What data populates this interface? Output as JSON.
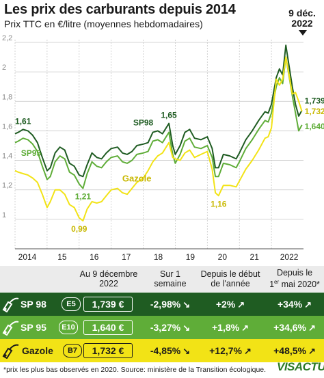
{
  "title": "Les prix des carburants depuis 2014",
  "subtitle": "Prix TTC en €/litre (moyennes hebdomadaires)",
  "date_flag": [
    "9 déc.",
    "2022"
  ],
  "colors": {
    "sp98": "#1f5c22",
    "sp95": "#5fad38",
    "gazole": "#f2e316",
    "grid": "#c7c7c7"
  },
  "chart_data": {
    "type": "line",
    "ylim": [
      0.8,
      2.2
    ],
    "xlim": [
      2014,
      2023
    ],
    "yticks": [
      "1",
      "1,2",
      "1,4",
      "1,6",
      "1,8",
      "2",
      "2,2"
    ],
    "ytick_values": [
      1.0,
      1.2,
      1.4,
      1.6,
      1.8,
      2.0,
      2.2
    ],
    "xticks": [
      "2014",
      "15",
      "16",
      "17",
      "18",
      "19",
      "20",
      "21",
      "2022"
    ],
    "xtick_values": [
      2014.0,
      2015.0,
      2016.0,
      2017.0,
      2018.0,
      2019.0,
      2020.0,
      2021.0,
      2022.0
    ],
    "series": [
      {
        "name": "SP98",
        "color_key": "sp98",
        "x": [
          2014.0,
          2014.1,
          2014.25,
          2014.4,
          2014.55,
          2014.7,
          2014.85,
          2015.0,
          2015.1,
          2015.25,
          2015.4,
          2015.55,
          2015.7,
          2015.85,
          2016.0,
          2016.12,
          2016.25,
          2016.4,
          2016.55,
          2016.7,
          2016.85,
          2017.0,
          2017.2,
          2017.35,
          2017.5,
          2017.65,
          2017.8,
          2018.0,
          2018.15,
          2018.3,
          2018.45,
          2018.6,
          2018.8,
          2018.92,
          2019.0,
          2019.15,
          2019.3,
          2019.45,
          2019.6,
          2019.8,
          2020.0,
          2020.15,
          2020.25,
          2020.35,
          2020.5,
          2020.7,
          2020.9,
          2021.0,
          2021.2,
          2021.4,
          2021.6,
          2021.8,
          2021.9,
          2022.0,
          2022.15,
          2022.25,
          2022.35,
          2022.45,
          2022.55,
          2022.65,
          2022.75,
          2022.85,
          2022.95
        ],
        "y": [
          1.58,
          1.59,
          1.61,
          1.6,
          1.57,
          1.52,
          1.42,
          1.33,
          1.35,
          1.45,
          1.49,
          1.47,
          1.38,
          1.36,
          1.3,
          1.29,
          1.37,
          1.45,
          1.42,
          1.41,
          1.45,
          1.48,
          1.49,
          1.45,
          1.44,
          1.46,
          1.5,
          1.51,
          1.52,
          1.59,
          1.6,
          1.58,
          1.65,
          1.5,
          1.44,
          1.5,
          1.59,
          1.61,
          1.55,
          1.54,
          1.56,
          1.48,
          1.35,
          1.35,
          1.44,
          1.43,
          1.41,
          1.45,
          1.54,
          1.6,
          1.67,
          1.73,
          1.72,
          1.78,
          1.96,
          2.02,
          1.98,
          2.18,
          2.04,
          1.9,
          1.78,
          1.7,
          1.739
        ]
      },
      {
        "name": "SP95",
        "color_key": "sp95",
        "x": [
          2014.0,
          2014.1,
          2014.25,
          2014.4,
          2014.55,
          2014.7,
          2014.85,
          2015.0,
          2015.1,
          2015.25,
          2015.4,
          2015.55,
          2015.7,
          2015.85,
          2016.0,
          2016.12,
          2016.25,
          2016.4,
          2016.55,
          2016.7,
          2016.85,
          2017.0,
          2017.2,
          2017.35,
          2017.5,
          2017.65,
          2017.8,
          2018.0,
          2018.15,
          2018.3,
          2018.45,
          2018.6,
          2018.8,
          2018.92,
          2019.0,
          2019.15,
          2019.3,
          2019.45,
          2019.6,
          2019.8,
          2020.0,
          2020.15,
          2020.25,
          2020.35,
          2020.5,
          2020.7,
          2020.9,
          2021.0,
          2021.2,
          2021.4,
          2021.6,
          2021.8,
          2021.9,
          2022.0,
          2022.15,
          2022.25,
          2022.35,
          2022.45,
          2022.55,
          2022.65,
          2022.75,
          2022.85,
          2022.95
        ],
        "y": [
          1.52,
          1.53,
          1.55,
          1.54,
          1.51,
          1.46,
          1.36,
          1.27,
          1.29,
          1.39,
          1.43,
          1.41,
          1.32,
          1.3,
          1.24,
          1.21,
          1.31,
          1.39,
          1.36,
          1.35,
          1.39,
          1.42,
          1.43,
          1.39,
          1.38,
          1.4,
          1.44,
          1.45,
          1.46,
          1.53,
          1.54,
          1.52,
          1.59,
          1.44,
          1.38,
          1.44,
          1.53,
          1.55,
          1.49,
          1.48,
          1.5,
          1.42,
          1.29,
          1.29,
          1.38,
          1.37,
          1.35,
          1.39,
          1.48,
          1.54,
          1.61,
          1.67,
          1.66,
          1.72,
          1.9,
          1.96,
          1.92,
          2.1,
          1.97,
          1.84,
          1.72,
          1.6,
          1.64
        ]
      },
      {
        "name": "Gazole",
        "color_key": "gazole",
        "x": [
          2014.0,
          2014.1,
          2014.25,
          2014.4,
          2014.55,
          2014.7,
          2014.85,
          2015.0,
          2015.1,
          2015.25,
          2015.4,
          2015.55,
          2015.7,
          2015.85,
          2016.0,
          2016.12,
          2016.25,
          2016.4,
          2016.55,
          2016.7,
          2016.85,
          2017.0,
          2017.2,
          2017.35,
          2017.5,
          2017.65,
          2017.8,
          2018.0,
          2018.15,
          2018.3,
          2018.45,
          2018.6,
          2018.8,
          2018.92,
          2019.0,
          2019.15,
          2019.3,
          2019.45,
          2019.6,
          2019.8,
          2020.0,
          2020.15,
          2020.25,
          2020.35,
          2020.5,
          2020.7,
          2020.9,
          2021.0,
          2021.2,
          2021.4,
          2021.6,
          2021.8,
          2021.9,
          2022.0,
          2022.15,
          2022.25,
          2022.35,
          2022.45,
          2022.55,
          2022.65,
          2022.75,
          2022.85,
          2022.95
        ],
        "y": [
          1.33,
          1.32,
          1.31,
          1.3,
          1.28,
          1.25,
          1.17,
          1.08,
          1.12,
          1.2,
          1.2,
          1.17,
          1.1,
          1.08,
          1.01,
          0.99,
          1.07,
          1.12,
          1.11,
          1.12,
          1.16,
          1.2,
          1.21,
          1.18,
          1.17,
          1.21,
          1.25,
          1.28,
          1.33,
          1.39,
          1.43,
          1.45,
          1.52,
          1.42,
          1.41,
          1.4,
          1.45,
          1.47,
          1.42,
          1.44,
          1.46,
          1.34,
          1.18,
          1.16,
          1.23,
          1.23,
          1.22,
          1.26,
          1.34,
          1.4,
          1.47,
          1.55,
          1.56,
          1.62,
          1.95,
          1.91,
          1.95,
          2.1,
          1.98,
          1.85,
          1.86,
          1.8,
          1.732
        ]
      }
    ],
    "annotations": [
      {
        "text": "1,61",
        "x": 2014.25,
        "y": 1.61,
        "series": "sp98",
        "pos": "above"
      },
      {
        "text": "SP98",
        "x": 2018.0,
        "y": 1.6,
        "series": "sp98",
        "pos": "above"
      },
      {
        "text": "1,65",
        "x": 2018.8,
        "y": 1.65,
        "series": "sp98",
        "pos": "above"
      },
      {
        "text": "SP95",
        "x": 2014.1,
        "y": 1.45,
        "series": "sp95",
        "pos": "right"
      },
      {
        "text": "1,21",
        "x": 2016.12,
        "y": 1.21,
        "series": "sp95",
        "pos": "below"
      },
      {
        "text": "0,99",
        "x": 2016.0,
        "y": 0.99,
        "series": "gazole",
        "pos": "below"
      },
      {
        "text": "Gazole",
        "x": 2017.8,
        "y": 1.33,
        "series": "gazole",
        "pos": "below"
      },
      {
        "text": "1,16",
        "x": 2020.35,
        "y": 1.16,
        "series": "gazole",
        "pos": "below"
      },
      {
        "text": "1,739",
        "x": 2022.95,
        "y": 1.739,
        "series": "sp98",
        "pos": "end"
      },
      {
        "text": "1,732",
        "x": 2022.95,
        "y": 1.732,
        "series": "gazole",
        "pos": "end"
      },
      {
        "text": "1,640",
        "x": 2022.95,
        "y": 1.64,
        "series": "sp95",
        "pos": "end"
      }
    ]
  },
  "table": {
    "headers": {
      "col_price": [
        "Au 9 décembre",
        "2022"
      ],
      "col_week": [
        "Sur 1",
        "semaine"
      ],
      "col_year": [
        "Depuis le début",
        "de l'année"
      ],
      "col_may_l1": "Depuis le",
      "col_may_l2a": "1",
      "col_may_sup": "er",
      "col_may_l2b": " mai 2020*"
    },
    "rows": [
      {
        "name": "SP 98",
        "code": "E5",
        "price": "1,739 €",
        "week": "-2,98%",
        "week_arrow": "↘",
        "year": "+2%",
        "year_arrow": "↗",
        "may": "+34%",
        "may_arrow": "↗"
      },
      {
        "name": "SP 95",
        "code": "E10",
        "price": "1,640 €",
        "week": "-3,27%",
        "week_arrow": "↘",
        "year": "+1,8%",
        "year_arrow": "↗",
        "may": "+34,6%",
        "may_arrow": "↗"
      },
      {
        "name": "Gazole",
        "code": "B7",
        "price": "1,732 €",
        "week": "-4,85%",
        "week_arrow": "↘",
        "year": "+12,7%",
        "year_arrow": "↗",
        "may": "+48,5%",
        "may_arrow": "↗"
      }
    ]
  },
  "footnote": "*prix les plus bas observés en 2020. Source: ministère de la Transition écologique.",
  "logo": "VISACTU"
}
